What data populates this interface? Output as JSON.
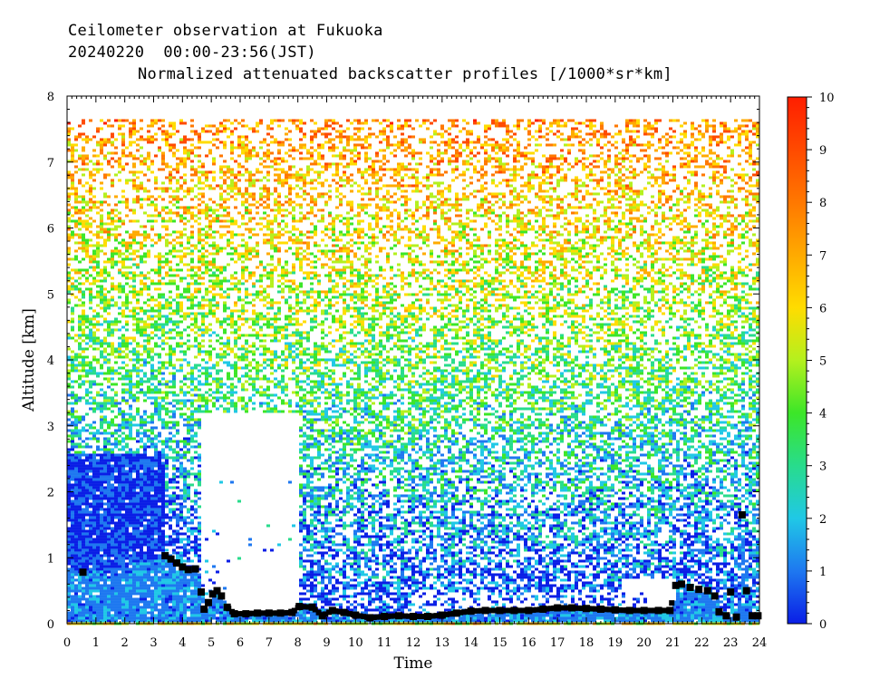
{
  "header": {
    "line1": "Ceilometer observation at Fukuoka",
    "line2": "20240220  00:00-23:56(JST)",
    "line3": "Normalized attenuated backscatter profiles [/1000*sr*km]"
  },
  "chart_data": {
    "type": "heatmap",
    "xlabel": "Time",
    "ylabel": "Altitude [km]",
    "xlim": [
      0,
      24
    ],
    "ylim": [
      0,
      8
    ],
    "x_ticks": [
      "0",
      "1",
      "2",
      "3",
      "4",
      "5",
      "6",
      "7",
      "8",
      "9",
      "10",
      "11",
      "12",
      "13",
      "14",
      "15",
      "16",
      "17",
      "18",
      "19",
      "20",
      "21",
      "22",
      "23",
      "24"
    ],
    "y_ticks": [
      "0",
      "1",
      "2",
      "3",
      "4",
      "5",
      "6",
      "7",
      "8"
    ],
    "colorbar": {
      "range": [
        0,
        10
      ],
      "ticks": [
        "0",
        "1",
        "2",
        "3",
        "4",
        "5",
        "6",
        "7",
        "8",
        "9",
        "10"
      ],
      "colors": [
        "#0a1ee6",
        "#1e78f0",
        "#20c8e6",
        "#28dc8c",
        "#3ce628",
        "#b4f01e",
        "#ffdc00",
        "#ffaa00",
        "#ff7800",
        "#ff4a00",
        "#ff1e00"
      ]
    },
    "data_top_km": 7.65,
    "cloud_base_km": [
      {
        "t": 0.55,
        "h": 0.78
      },
      {
        "t": 3.4,
        "h": 1.03
      },
      {
        "t": 3.6,
        "h": 0.98
      },
      {
        "t": 3.8,
        "h": 0.92
      },
      {
        "t": 4.0,
        "h": 0.86
      },
      {
        "t": 4.2,
        "h": 0.82
      },
      {
        "t": 4.45,
        "h": 0.83
      },
      {
        "t": 4.65,
        "h": 0.48
      },
      {
        "t": 4.75,
        "h": 0.22
      },
      {
        "t": 4.9,
        "h": 0.32
      },
      {
        "t": 5.05,
        "h": 0.45
      },
      {
        "t": 5.2,
        "h": 0.5
      },
      {
        "t": 5.35,
        "h": 0.42
      },
      {
        "t": 5.55,
        "h": 0.25
      },
      {
        "t": 5.8,
        "h": 0.15
      },
      {
        "t": 6.2,
        "h": 0.15
      },
      {
        "t": 6.6,
        "h": 0.16
      },
      {
        "t": 7.0,
        "h": 0.16
      },
      {
        "t": 7.4,
        "h": 0.16
      },
      {
        "t": 7.8,
        "h": 0.17
      },
      {
        "t": 8.05,
        "h": 0.26
      },
      {
        "t": 8.5,
        "h": 0.25
      },
      {
        "t": 8.85,
        "h": 0.12
      },
      {
        "t": 9.2,
        "h": 0.2
      },
      {
        "t": 9.6,
        "h": 0.17
      },
      {
        "t": 10.0,
        "h": 0.13
      },
      {
        "t": 10.5,
        "h": 0.09
      },
      {
        "t": 11.0,
        "h": 0.11
      },
      {
        "t": 11.5,
        "h": 0.12
      },
      {
        "t": 12.0,
        "h": 0.11
      },
      {
        "t": 12.5,
        "h": 0.11
      },
      {
        "t": 13.0,
        "h": 0.13
      },
      {
        "t": 13.5,
        "h": 0.16
      },
      {
        "t": 14.0,
        "h": 0.19
      },
      {
        "t": 14.5,
        "h": 0.2
      },
      {
        "t": 15.0,
        "h": 0.2
      },
      {
        "t": 15.5,
        "h": 0.2
      },
      {
        "t": 16.0,
        "h": 0.2
      },
      {
        "t": 16.5,
        "h": 0.22
      },
      {
        "t": 17.0,
        "h": 0.24
      },
      {
        "t": 17.5,
        "h": 0.24
      },
      {
        "t": 18.0,
        "h": 0.23
      },
      {
        "t": 18.5,
        "h": 0.22
      },
      {
        "t": 19.0,
        "h": 0.21
      },
      {
        "t": 19.5,
        "h": 0.2
      },
      {
        "t": 20.0,
        "h": 0.2
      },
      {
        "t": 20.5,
        "h": 0.2
      },
      {
        "t": 20.9,
        "h": 0.2
      },
      {
        "t": 21.1,
        "h": 0.58
      },
      {
        "t": 21.3,
        "h": 0.6
      },
      {
        "t": 21.6,
        "h": 0.55
      },
      {
        "t": 21.9,
        "h": 0.52
      },
      {
        "t": 22.2,
        "h": 0.5
      },
      {
        "t": 22.45,
        "h": 0.42
      },
      {
        "t": 22.6,
        "h": 0.18
      },
      {
        "t": 22.85,
        "h": 0.12
      },
      {
        "t": 23.0,
        "h": 0.48
      },
      {
        "t": 23.2,
        "h": 0.1
      },
      {
        "t": 23.4,
        "h": 1.65
      },
      {
        "t": 23.55,
        "h": 0.5
      },
      {
        "t": 23.75,
        "h": 0.12
      },
      {
        "t": 23.95,
        "h": 0.12
      }
    ]
  }
}
